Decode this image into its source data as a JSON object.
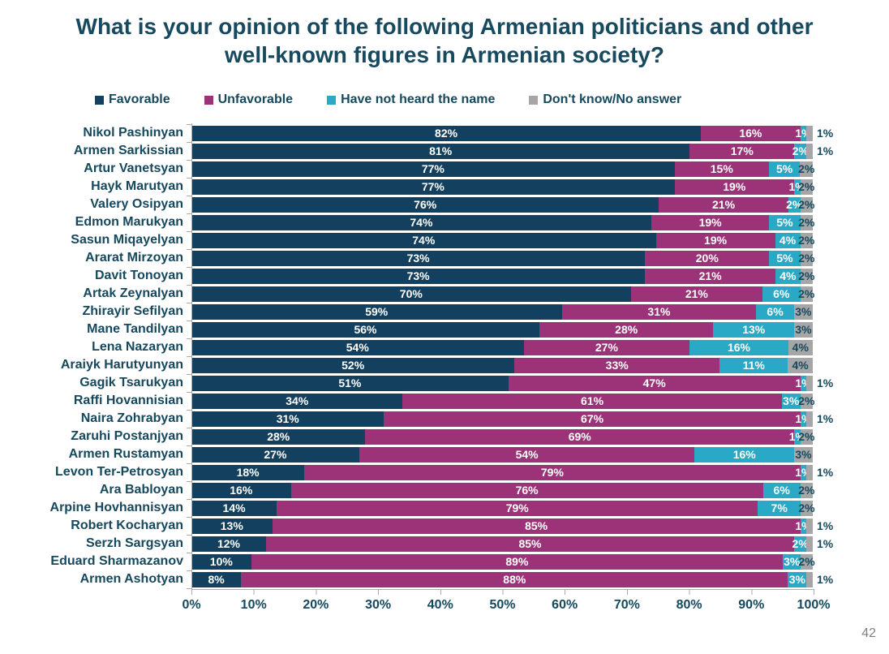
{
  "slide": {
    "title_lines": [
      "What is your opinion of the following Armenian politicians and other",
      "well-known figures in Armenian society?"
    ],
    "page_number": "42"
  },
  "colors": {
    "favorable": "#12405E",
    "unfavorable": "#9C3379",
    "have_not_heard": "#29A9C6",
    "dont_know": "#A6A6A6",
    "text": "#16485E",
    "axis": "#ABABAB",
    "page_number": "#7F7F7F"
  },
  "chart_data": {
    "type": "bar",
    "orientation": "horizontal",
    "stacked": true,
    "title": "What is your opinion of the following Armenian politicians and other well-known figures in Armenian society?",
    "value_suffix": "%",
    "xlabel": "",
    "ylabel": "",
    "xlim": [
      0,
      100
    ],
    "x_ticks": [
      "0%",
      "10%",
      "20%",
      "30%",
      "40%",
      "50%",
      "60%",
      "70%",
      "80%",
      "90%",
      "100%"
    ],
    "legend_position": "top",
    "categories": [
      "Nikol Pashinyan",
      "Armen Sarkissian",
      "Artur Vanetsyan",
      "Hayk Marutyan",
      "Valery Osipyan",
      "Edmon Marukyan",
      "Sasun Miqayelyan",
      "Ararat Mirzoyan",
      "Davit Tonoyan",
      "Artak Zeynalyan",
      "Zhirayir Sefilyan",
      "Mane Tandilyan",
      "Lena Nazaryan",
      "Araiyk Harutyunyan",
      "Gagik Tsarukyan",
      "Raffi Hovannisian",
      "Naira Zohrabyan",
      "Zaruhi Postanjyan",
      "Armen Rustamyan",
      "Levon Ter-Petrosyan",
      "Ara Babloyan",
      "Arpine Hovhannisyan",
      "Robert Kocharyan",
      "Serzh Sargsyan",
      "Eduard Sharmazanov",
      "Armen Ashotyan"
    ],
    "series": [
      {
        "name": "Favorable",
        "color": "#12405E",
        "values": [
          82,
          81,
          77,
          77,
          76,
          74,
          74,
          73,
          73,
          70,
          59,
          56,
          54,
          52,
          51,
          34,
          31,
          28,
          27,
          18,
          16,
          14,
          13,
          12,
          10,
          8
        ]
      },
      {
        "name": "Unfavorable",
        "color": "#9C3379",
        "values": [
          16,
          17,
          15,
          19,
          21,
          19,
          19,
          20,
          21,
          21,
          31,
          28,
          27,
          33,
          47,
          61,
          67,
          69,
          54,
          79,
          76,
          79,
          85,
          85,
          89,
          88
        ]
      },
      {
        "name": "Have not heard the name",
        "color": "#29A9C6",
        "values": [
          1,
          2,
          5,
          1,
          2,
          5,
          4,
          5,
          4,
          6,
          6,
          13,
          16,
          11,
          1,
          3,
          1,
          1,
          16,
          1,
          6,
          7,
          1,
          2,
          3,
          3
        ]
      },
      {
        "name": "Don't know/No answer",
        "color": "#A6A6A6",
        "values": [
          1,
          1,
          2,
          2,
          2,
          2,
          2,
          2,
          2,
          2,
          3,
          3,
          4,
          4,
          1,
          2,
          1,
          2,
          3,
          1,
          2,
          2,
          1,
          1,
          2,
          1
        ]
      }
    ]
  }
}
